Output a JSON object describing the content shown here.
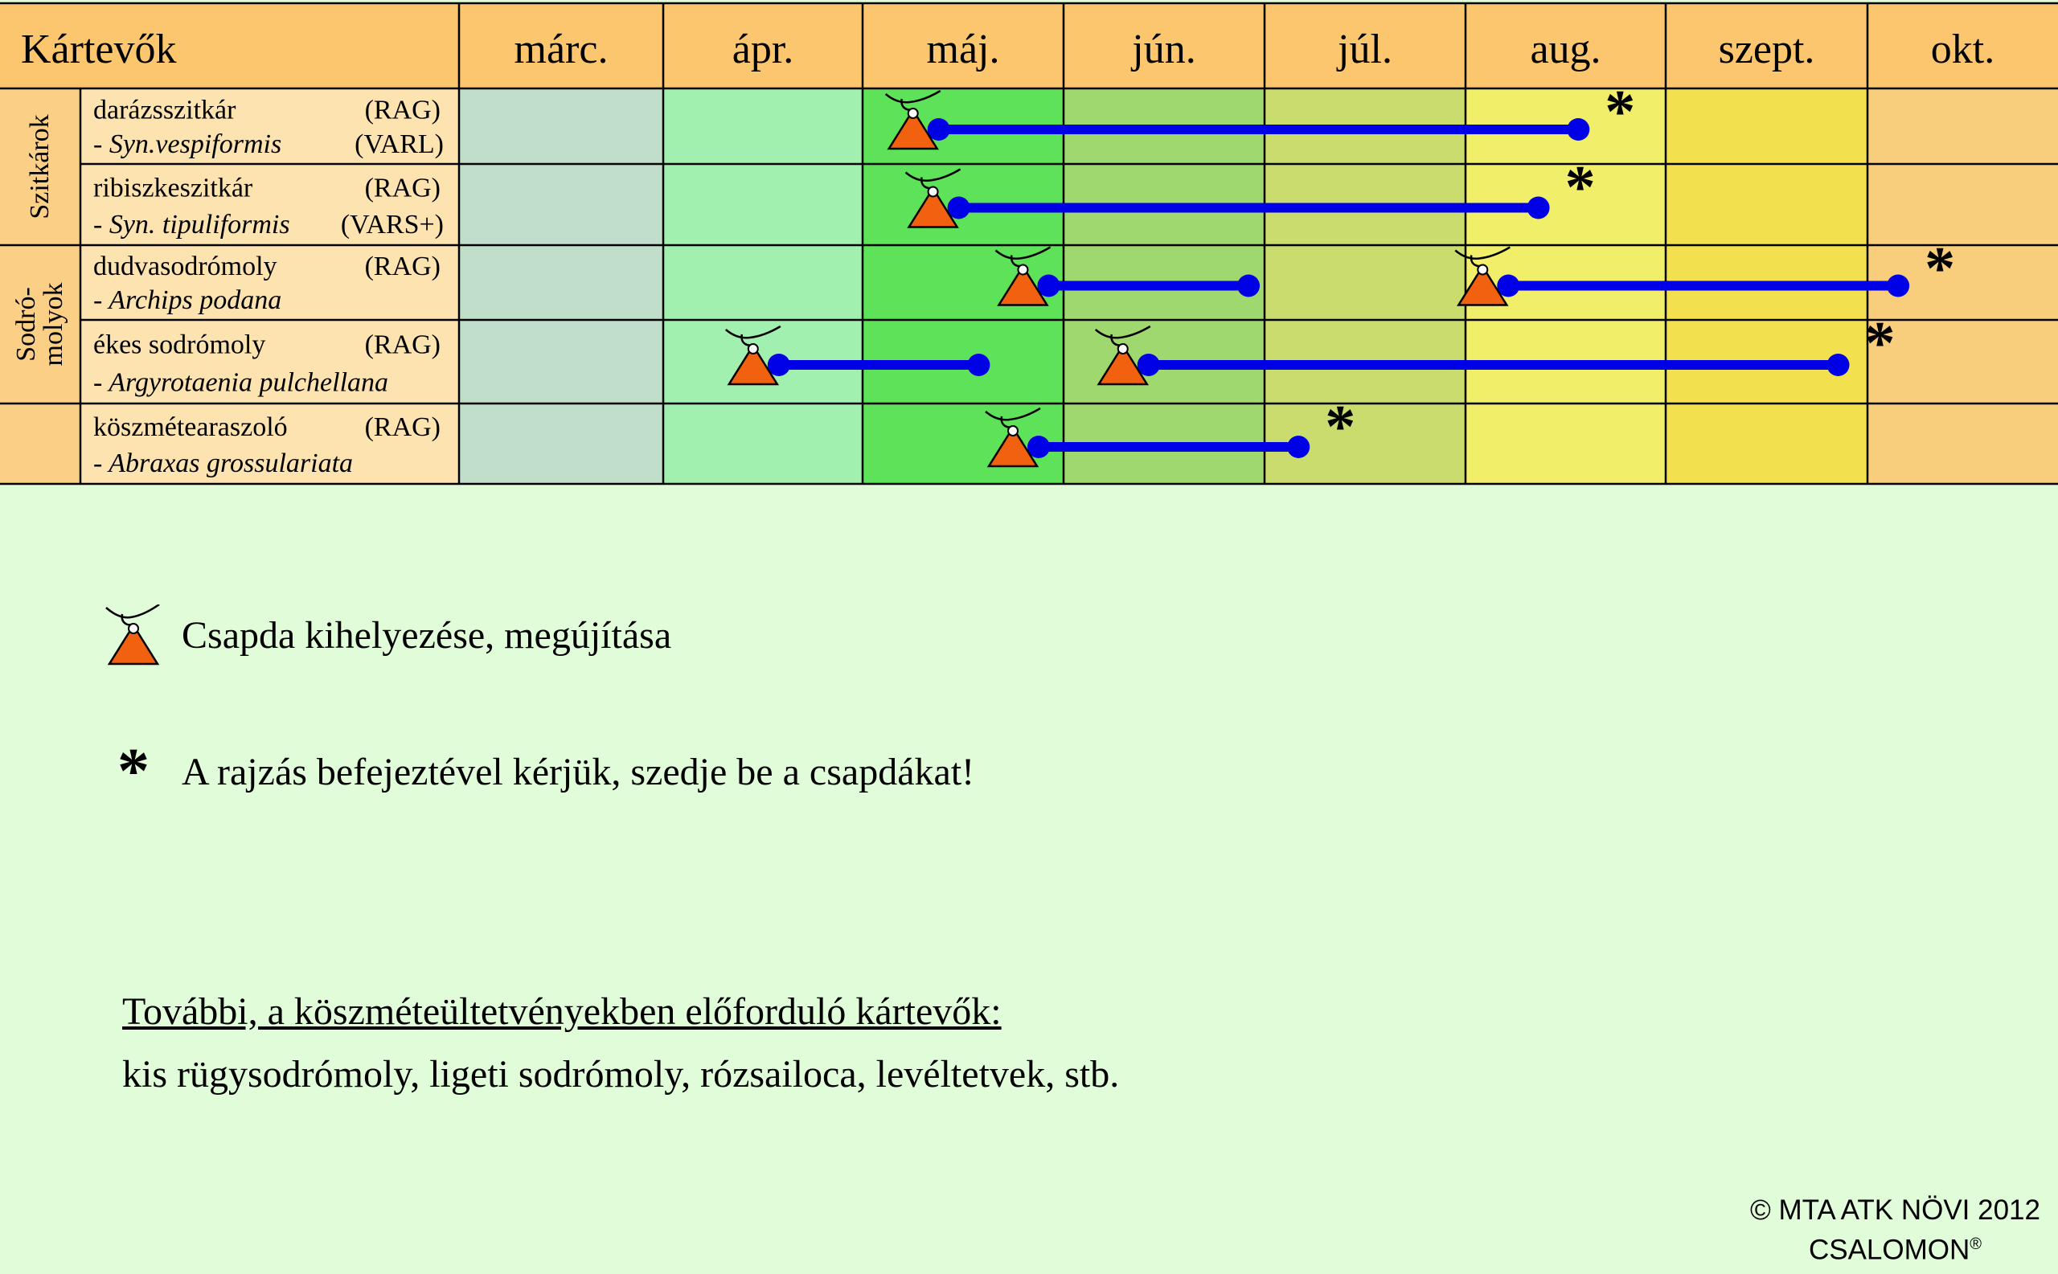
{
  "header": {
    "pests_label": "Kártevők",
    "months": [
      "márc.",
      "ápr.",
      "máj.",
      "jún.",
      "júl.",
      "aug.",
      "szept.",
      "okt."
    ]
  },
  "colors": {
    "header_bg": "#fcc66e",
    "label_bg": "#fde3b0",
    "group_bg": "#fccf86",
    "month_cols": [
      "#c0dec9",
      "#a2f0b0",
      "#5de259",
      "#9ed86e",
      "#cbdc6e",
      "#f1ee6a",
      "#f2e04e",
      "#f8cd7c"
    ],
    "line": "#0000e6",
    "trap": "#f2610f",
    "page_bg": "#e0fcd9"
  },
  "groups": [
    {
      "label": "Szitkárok",
      "rows": [
        0,
        1
      ]
    },
    {
      "label": "Sodró-molyok",
      "lines": [
        "Sodró-",
        "molyok"
      ],
      "rows": [
        2,
        3
      ]
    },
    {
      "label": "",
      "rows": [
        4
      ]
    }
  ],
  "pests": [
    {
      "name": "darázsszitkár",
      "latin": "- Syn.vespiformis",
      "code1": "(RAG)",
      "code2": "(VARL)",
      "periods": [
        {
          "start": "máj. eleje",
          "end": "aug. közepe",
          "start_m": 2.4,
          "end_m": 5.6,
          "collect": true
        }
      ]
    },
    {
      "name": "ribiszkeszitkár",
      "latin": "- Syn. tipuliformis",
      "code1": "(RAG)",
      "code2": "(VARS+)",
      "periods": [
        {
          "start": "máj. közepe",
          "end": "aug. eleje",
          "start_m": 2.5,
          "end_m": 5.4,
          "collect": true
        }
      ]
    },
    {
      "name": "dudvasodrómoly",
      "latin": "- Archips podana",
      "code1": "(RAG)",
      "code2": "",
      "periods": [
        {
          "start": "máj. vége",
          "end": "jún. vége",
          "start_m": 2.95,
          "end_m": 3.95,
          "collect": false
        },
        {
          "start": "aug. eleje",
          "end": "okt. eleje",
          "start_m": 5.25,
          "end_m": 7.2,
          "collect": true
        }
      ]
    },
    {
      "name": "ékes sodrómoly",
      "latin": "- Argyrotaenia pulchellana",
      "code1": "(RAG)",
      "code2": "",
      "periods": [
        {
          "start": "ápr. közepe",
          "end": "máj. vége",
          "start_m": 1.6,
          "end_m": 2.6,
          "collect": false
        },
        {
          "start": "jún. eleje",
          "end": "szept. vége",
          "start_m": 3.45,
          "end_m": 6.9,
          "collect": true
        }
      ]
    },
    {
      "name": "köszmétearaszoló",
      "latin": "- Abraxas grossulariata",
      "code1": "(RAG)",
      "code2": "",
      "periods": [
        {
          "start": "máj. vége",
          "end": "júl. eleje",
          "start_m": 2.9,
          "end_m": 4.2,
          "collect": true
        }
      ]
    }
  ],
  "legend": {
    "trap_label": "Csapda kihelyezése, megújítása",
    "trap_icon": "trap-icon",
    "collect_symbol": "*",
    "collect_label": "A rajzás befejeztével kérjük, szedje be a csapdákat!"
  },
  "additional": {
    "title": "További, a köszméteültetvényekben előforduló kártevők:",
    "text": "kis rügysodrómoly, ligeti sodrómoly, rózsailoca, levéltetvek, stb."
  },
  "copyright": {
    "line1": "© MTA ATK NÖVI 2012",
    "line2": "CSALOMON",
    "reg": "®"
  }
}
